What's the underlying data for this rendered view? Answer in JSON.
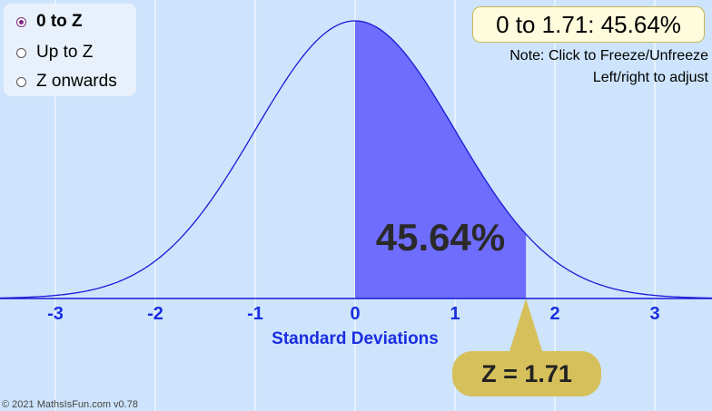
{
  "modes": {
    "selected": "0 to Z",
    "items": [
      {
        "label": "0 to Z",
        "checked": true
      },
      {
        "label": "Up to Z",
        "checked": false
      },
      {
        "label": "Z onwards",
        "checked": false
      }
    ]
  },
  "result": {
    "text": "0 to 1.71: 45.64%"
  },
  "notes": {
    "line1": "Note: Click to Freeze/Unfreeze",
    "line2": "Left/right to adjust"
  },
  "copyright": "© 2021 MathsIsFun.com v0.78",
  "chart_data": {
    "type": "area",
    "distribution": "standard normal",
    "xlabel": "Standard Deviations",
    "xlim": [
      -3.6,
      3.6
    ],
    "xticks": [
      "-3",
      "-2",
      "-1",
      "0",
      "1",
      "2",
      "3"
    ],
    "shaded_from": 0,
    "shaded_to": 1.71,
    "area_label": "45.64%",
    "z_label": "Z = 1.71",
    "z": 1.71
  },
  "colors": {
    "background": "#cde4fc",
    "curve": "#1a1ad8",
    "shaded": "#6f6dfe",
    "tick_text": "#1a2ee0",
    "z_box": "#d6c05c",
    "result_box": "#fffbdd"
  }
}
